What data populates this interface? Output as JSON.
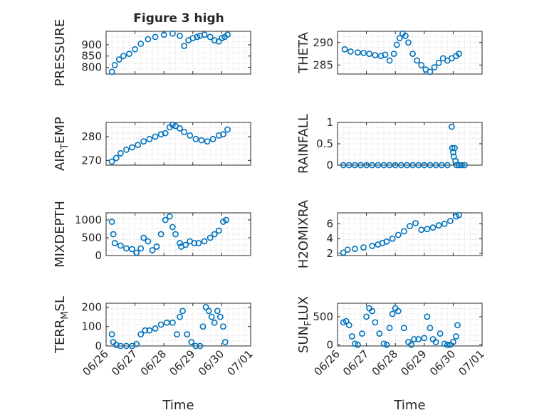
{
  "figure": {
    "title": "Figure 3 high"
  },
  "style": {
    "marker_color": "#0072BD",
    "axis_color": "#262626",
    "grid_color": "#d9d9d9"
  },
  "shared_x": {
    "label": "Time",
    "ticks": [
      "06/26",
      "06/27",
      "06/28",
      "06/29",
      "06/30",
      "07/01"
    ],
    "range_days": [
      0,
      5
    ]
  },
  "chart_data": [
    {
      "type": "scatter",
      "ylabel": "PRESSURE",
      "ylim": [
        770,
        960
      ],
      "yticks": [
        800,
        850,
        900
      ],
      "yticklabels": [
        "800",
        "850",
        "900"
      ],
      "grid": true,
      "marker": "open-circle",
      "x": [
        0.2,
        0.3,
        0.45,
        0.6,
        0.8,
        1.0,
        1.2,
        1.45,
        1.7,
        2.0,
        2.3,
        2.55,
        2.7,
        2.85,
        3.0,
        3.15,
        3.25,
        3.4,
        3.6,
        3.75,
        3.9,
        4.0,
        4.1,
        4.2
      ],
      "y": [
        780,
        810,
        835,
        850,
        860,
        880,
        905,
        925,
        935,
        945,
        950,
        940,
        895,
        920,
        930,
        935,
        940,
        945,
        935,
        920,
        915,
        930,
        935,
        945
      ]
    },
    {
      "type": "scatter",
      "ylabel": "THETA",
      "ylim": [
        283,
        292.5
      ],
      "yticks": [
        285,
        290
      ],
      "yticklabels": [
        "285",
        "290"
      ],
      "grid": true,
      "marker": "open-circle",
      "x": [
        0.25,
        0.45,
        0.7,
        0.9,
        1.1,
        1.3,
        1.5,
        1.65,
        1.8,
        1.95,
        2.05,
        2.15,
        2.25,
        2.35,
        2.45,
        2.6,
        2.75,
        2.9,
        3.05,
        3.2,
        3.35,
        3.5,
        3.65,
        3.8,
        3.95,
        4.1,
        4.2
      ],
      "y": [
        288.5,
        288,
        287.8,
        287.7,
        287.5,
        287.2,
        287,
        287.3,
        286,
        287.5,
        289.5,
        291,
        292,
        291.5,
        290,
        287.5,
        286,
        285,
        284,
        283.5,
        284.5,
        285.5,
        286.5,
        286,
        286.5,
        287,
        287.5
      ]
    },
    {
      "type": "scatter",
      "ylabel": "AIR_TEMP",
      "ylim": [
        268,
        286
      ],
      "yticks": [
        270,
        280
      ],
      "yticklabels": [
        "270",
        "280"
      ],
      "grid": true,
      "marker": "open-circle",
      "x": [
        0.2,
        0.35,
        0.5,
        0.7,
        0.9,
        1.1,
        1.3,
        1.5,
        1.7,
        1.9,
        2.05,
        2.2,
        2.3,
        2.4,
        2.55,
        2.7,
        2.9,
        3.1,
        3.3,
        3.5,
        3.7,
        3.9,
        4.05,
        4.2
      ],
      "y": [
        269.5,
        271,
        273,
        274.5,
        275.5,
        276.5,
        278,
        279,
        280,
        281,
        281.5,
        284,
        285,
        284.5,
        283.5,
        282,
        280.5,
        279,
        278.5,
        278,
        279,
        280.5,
        281,
        283
      ]
    },
    {
      "type": "scatter",
      "ylabel": "RAINFALL",
      "ylim": [
        0,
        1
      ],
      "yticks": [
        0,
        0.5,
        1
      ],
      "yticklabels": [
        "0",
        "0.5",
        "1"
      ],
      "grid": true,
      "marker": "open-circle",
      "x": [
        0.2,
        0.4,
        0.6,
        0.8,
        1.0,
        1.2,
        1.4,
        1.6,
        1.8,
        2.0,
        2.2,
        2.4,
        2.6,
        2.8,
        3.0,
        3.2,
        3.4,
        3.6,
        3.8,
        3.95,
        3.97,
        4.0,
        4.02,
        4.05,
        4.08,
        4.12,
        4.2,
        4.3,
        4.4
      ],
      "y": [
        0,
        0,
        0,
        0,
        0,
        0,
        0,
        0,
        0,
        0,
        0,
        0,
        0,
        0,
        0,
        0,
        0,
        0,
        0,
        0.9,
        0.4,
        0.3,
        0.2,
        0.4,
        0.1,
        0,
        0,
        0,
        0
      ]
    },
    {
      "type": "scatter",
      "ylabel": "MIXDEPTH",
      "ylim": [
        0,
        1200
      ],
      "yticks": [
        0,
        500,
        1000
      ],
      "yticklabels": [
        "0",
        "500",
        "1000"
      ],
      "grid": true,
      "marker": "open-circle",
      "x": [
        0.2,
        0.25,
        0.3,
        0.5,
        0.7,
        0.9,
        1.05,
        1.2,
        1.3,
        1.45,
        1.6,
        1.75,
        1.9,
        2.05,
        2.2,
        2.3,
        2.4,
        2.55,
        2.6,
        2.75,
        2.9,
        3.05,
        3.2,
        3.4,
        3.6,
        3.75,
        3.9,
        4.05,
        4.15
      ],
      "y": [
        950,
        600,
        350,
        280,
        200,
        180,
        80,
        200,
        500,
        400,
        150,
        250,
        600,
        1000,
        1100,
        800,
        600,
        350,
        250,
        300,
        400,
        350,
        350,
        400,
        500,
        600,
        700,
        950,
        1000
      ]
    },
    {
      "type": "scatter",
      "ylabel": "H2OMIXRA",
      "ylim": [
        1.7,
        7.5
      ],
      "yticks": [
        2,
        4,
        6
      ],
      "yticklabels": [
        "2",
        "4",
        "6"
      ],
      "grid": true,
      "marker": "open-circle",
      "x": [
        0.2,
        0.35,
        0.6,
        0.9,
        1.2,
        1.4,
        1.55,
        1.7,
        1.9,
        2.1,
        2.3,
        2.5,
        2.7,
        2.9,
        3.1,
        3.3,
        3.5,
        3.7,
        3.9,
        4.1,
        4.2
      ],
      "y": [
        2.1,
        2.5,
        2.6,
        2.8,
        3,
        3.2,
        3.4,
        3.6,
        4,
        4.5,
        5,
        5.7,
        6.1,
        5.2,
        5.3,
        5.5,
        5.8,
        6,
        6.4,
        7,
        7.2
      ]
    },
    {
      "type": "scatter",
      "ylabel": "TERR_MSL",
      "ylim": [
        0,
        220
      ],
      "yticks": [
        0,
        100,
        200
      ],
      "yticklabels": [
        "0",
        "100",
        "200"
      ],
      "grid": true,
      "marker": "open-circle",
      "x": [
        0.2,
        0.25,
        0.35,
        0.5,
        0.7,
        0.9,
        1.05,
        1.2,
        1.35,
        1.5,
        1.7,
        1.9,
        2.1,
        2.3,
        2.45,
        2.55,
        2.65,
        2.8,
        2.95,
        3.1,
        3.25,
        3.35,
        3.45,
        3.55,
        3.65,
        3.75,
        3.85,
        3.95,
        4.05,
        4.12
      ],
      "y": [
        60,
        20,
        5,
        0,
        0,
        0,
        10,
        60,
        80,
        80,
        90,
        110,
        120,
        120,
        60,
        150,
        180,
        60,
        20,
        0,
        0,
        100,
        200,
        180,
        150,
        120,
        180,
        150,
        100,
        20
      ]
    },
    {
      "type": "scatter",
      "ylabel": "SUN_FLUX",
      "ylim": [
        -20,
        740
      ],
      "yticks": [
        0,
        500
      ],
      "yticklabels": [
        "0",
        "500"
      ],
      "grid": true,
      "marker": "open-circle",
      "x": [
        0.2,
        0.3,
        0.4,
        0.5,
        0.6,
        0.7,
        0.85,
        1.0,
        1.1,
        1.2,
        1.3,
        1.45,
        1.6,
        1.7,
        1.8,
        1.9,
        2.0,
        2.1,
        2.3,
        2.45,
        2.55,
        2.65,
        2.8,
        3.0,
        3.1,
        3.2,
        3.3,
        3.4,
        3.55,
        3.7,
        3.8,
        3.9,
        4.0,
        4.1,
        4.15
      ],
      "y": [
        400,
        420,
        350,
        150,
        20,
        0,
        200,
        500,
        650,
        600,
        400,
        200,
        20,
        0,
        300,
        550,
        650,
        600,
        300,
        50,
        0,
        100,
        100,
        120,
        500,
        300,
        100,
        50,
        200,
        20,
        0,
        0,
        50,
        150,
        350
      ]
    }
  ]
}
